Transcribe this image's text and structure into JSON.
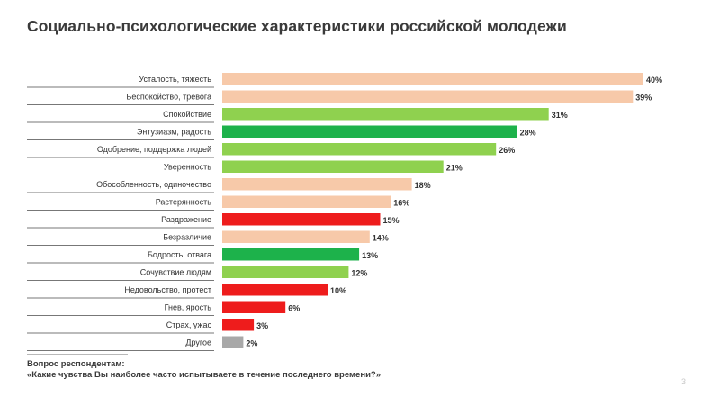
{
  "title": "Социально-психологические характеристики российской молодежи",
  "footnote": {
    "heading": "Вопрос респондентам:",
    "question": "«Какие чувства Вы наиболее часто испытываете в течение последнего времени?»"
  },
  "page_number": "3",
  "colors": {
    "negative_light": "#f7c9a9",
    "positive_light": "#8fd14f",
    "positive_strong": "#1db24b",
    "negative_strong": "#ee1c1c",
    "neutral": "#a8a8a8"
  },
  "chart_data": {
    "type": "bar",
    "orientation": "horizontal",
    "value_suffix": "%",
    "xlim": [
      0,
      40
    ],
    "grid": false,
    "legend": "none",
    "categories": [
      "Усталость, тяжесть",
      "Беспокойство, тревога",
      "Спокойствие",
      "Энтузиазм, радость",
      "Одобрение, поддержка людей",
      "Уверенность",
      "Обособленность, одиночество",
      "Растерянность",
      "Раздражение",
      "Безразличие",
      "Бодрость, отвага",
      "Сочувствие людям",
      "Недовольство, протест",
      "Гнев, ярость",
      "Страх, ужас",
      "Другое"
    ],
    "values": [
      40,
      39,
      31,
      28,
      26,
      21,
      18,
      16,
      15,
      14,
      13,
      12,
      10,
      6,
      3,
      2
    ],
    "value_labels": [
      "40%",
      "39%",
      "31%",
      "28%",
      "26%",
      "21%",
      "18%",
      "16%",
      "15%",
      "14%",
      "13%",
      "12%",
      "10%",
      "6%",
      "3%",
      "2%"
    ],
    "bar_colors": [
      "#f7c9a9",
      "#f7c9a9",
      "#8fd14f",
      "#1db24b",
      "#8fd14f",
      "#8fd14f",
      "#f7c9a9",
      "#f7c9a9",
      "#ee1c1c",
      "#f7c9a9",
      "#1db24b",
      "#8fd14f",
      "#ee1c1c",
      "#ee1c1c",
      "#ee1c1c",
      "#a8a8a8"
    ]
  }
}
